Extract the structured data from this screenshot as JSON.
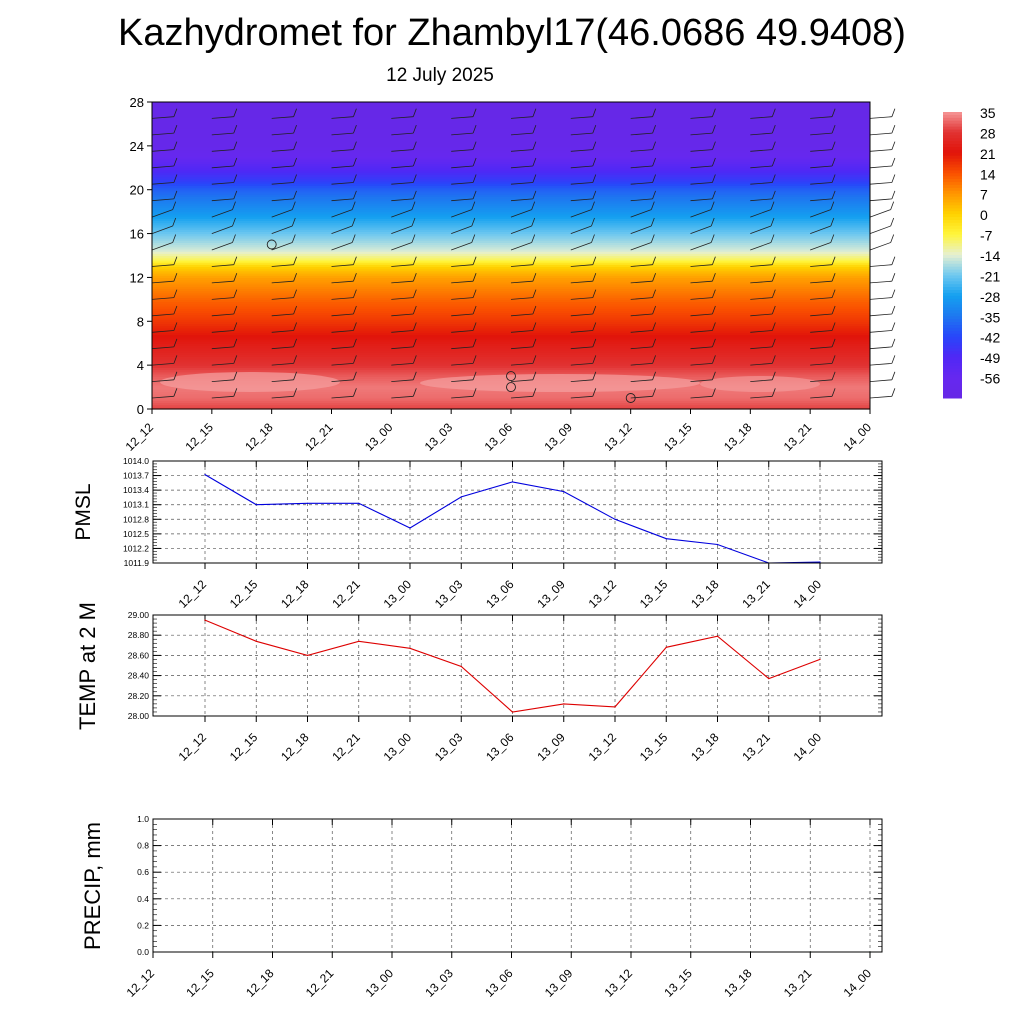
{
  "title": "Kazhydromet for Zhambyl17(46.0686 49.9408)",
  "subtitle": "12 July 2025",
  "colors": {
    "pmsl_line": "#0000dd",
    "temp_line": "#dd0000",
    "precip_line": "#006600",
    "grid": "#555555"
  },
  "chart_data": [
    {
      "type": "heatmap",
      "name": "cross-section",
      "x": [
        "12_12",
        "12_15",
        "12_18",
        "12_21",
        "13_00",
        "13_03",
        "13_06",
        "13_09",
        "13_12",
        "13_15",
        "13_18",
        "13_21",
        "14_00"
      ],
      "ylim": [
        0,
        28
      ],
      "yticks": [
        0,
        4,
        8,
        12,
        16,
        20,
        24,
        28
      ],
      "colorbar": {
        "labels": [
          "35",
          "28",
          "21",
          "14",
          "7",
          "0",
          "-7",
          "-14",
          "-21",
          "-28",
          "-35",
          "-42",
          "-49",
          "-56"
        ],
        "range": [
          -63,
          35
        ]
      },
      "grid": false
    },
    {
      "type": "line",
      "name": "pmsl",
      "ylabel": "PMSL",
      "x": [
        "12_12",
        "12_15",
        "12_18",
        "12_21",
        "13_00",
        "13_03",
        "13_06",
        "13_09",
        "13_12",
        "13_15",
        "13_18",
        "13_21",
        "14_00"
      ],
      "ylim": [
        1011.9,
        1014.0
      ],
      "yticks": [
        "1011.9",
        "1012.2",
        "1012.5",
        "1012.8",
        "1013.1",
        "1013.4",
        "1013.7",
        "1014.0"
      ],
      "values": [
        1013.72,
        1013.1,
        1013.13,
        1013.13,
        1012.62,
        1013.26,
        1013.57,
        1013.37,
        1012.8,
        1012.4,
        1012.28,
        1011.9,
        1011.92
      ],
      "grid": true
    },
    {
      "type": "line",
      "name": "temp",
      "ylabel": "TEMP at 2 M",
      "x": [
        "12_12",
        "12_15",
        "12_18",
        "12_21",
        "13_00",
        "13_03",
        "13_06",
        "13_09",
        "13_12",
        "13_15",
        "13_18",
        "13_21",
        "14_00"
      ],
      "ylim": [
        28.0,
        29.0
      ],
      "yticks": [
        "28.00",
        "28.20",
        "28.40",
        "28.60",
        "28.80",
        "29.00"
      ],
      "values": [
        28.95,
        28.74,
        28.6,
        28.74,
        28.67,
        28.49,
        28.04,
        28.12,
        28.09,
        28.68,
        28.79,
        28.37,
        28.56
      ],
      "grid": true
    },
    {
      "type": "line",
      "name": "precip",
      "ylabel": "PRECIP, mm",
      "x": [
        "12_12",
        "12_15",
        "12_18",
        "12_21",
        "13_00",
        "13_03",
        "13_06",
        "13_09",
        "13_12",
        "13_15",
        "13_18",
        "13_21",
        "14_00"
      ],
      "ylim": [
        0.0,
        1.0
      ],
      "yticks": [
        "0.0",
        "0.2",
        "0.4",
        "0.6",
        "0.8",
        "1.0"
      ],
      "values": [
        0,
        0,
        0,
        0,
        0,
        0,
        0,
        0,
        0,
        0,
        0,
        0,
        0
      ],
      "grid": true
    }
  ]
}
